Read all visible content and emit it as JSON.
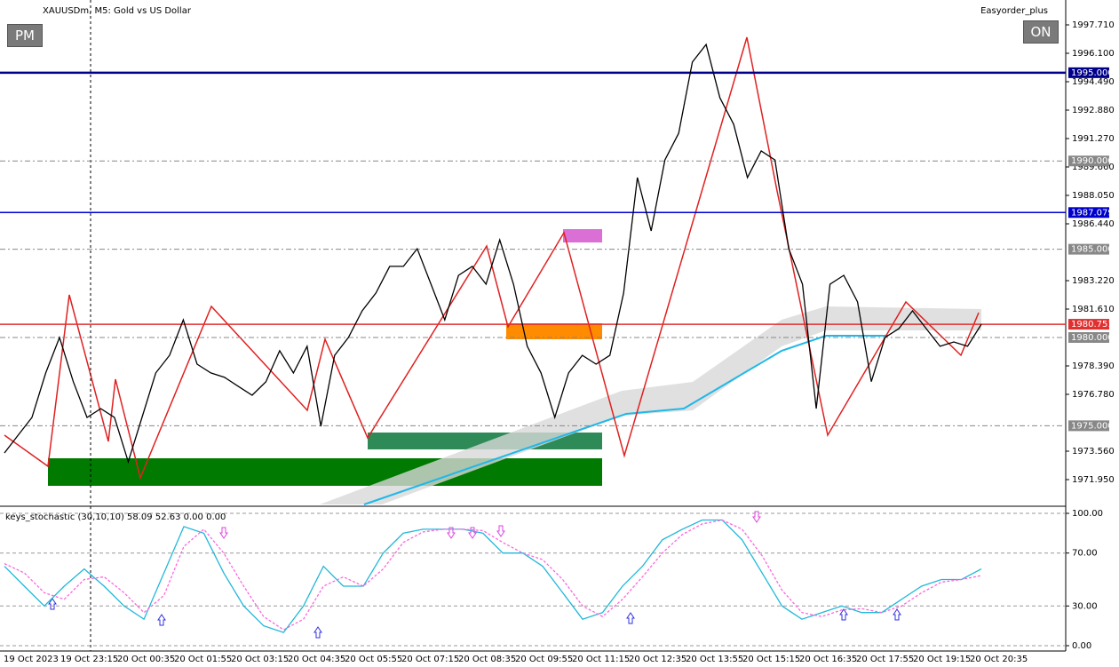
{
  "header": {
    "symbol": "XAUUSDm, M5:  Gold vs US Dollar",
    "expert": "Easyorder_plus",
    "buttons": [
      "PM",
      "ON"
    ]
  },
  "chart_data": [
    {
      "type": "line",
      "color": "#000000",
      "values": [
        1973.46,
        1974.47,
        1975.47,
        1977.99,
        1980.0,
        1977.5,
        1975.47,
        1975.97,
        1975.47,
        1972.96,
        1975.47,
        1977.99,
        1978.99,
        1981.0,
        1978.49,
        1977.99,
        1977.74,
        1977.23,
        1976.73,
        1977.49,
        1979.25,
        1977.99,
        1979.5,
        1974.97,
        1978.99,
        1980.0,
        1981.51,
        1982.52,
        1984.03,
        1984.03,
        1985.03,
        1983.02,
        1981.0,
        1983.52,
        1984.03,
        1983.02,
        1985.53,
        1983.02,
        1979.5,
        1977.99,
        1975.47,
        1977.99,
        1978.99,
        1978.49,
        1978.99,
        1982.52,
        1989.06,
        1986.04,
        1990.06,
        1991.57,
        1995.6,
        1996.6,
        1993.58,
        1992.08,
        1989.06,
        1990.57,
        1990.06,
        1985.03,
        1983.02,
        1975.97,
        1983.02,
        1983.52,
        1982.01,
        1977.5,
        1980.0,
        1980.5,
        1981.51,
        1980.5,
        1979.5,
        1979.75,
        1979.5,
        1980.75
      ],
      "ylim": [
        1970.541,
        1999.119
      ],
      "yticks": [
        {
          "value": 1997.71,
          "label": "1997.710"
        },
        {
          "value": 1996.1,
          "label": "1996.100"
        },
        {
          "value": 1994.49,
          "label": "1994.490"
        },
        {
          "value": 1992.88,
          "label": "1992.880"
        },
        {
          "value": 1991.27,
          "label": "1991.270"
        },
        {
          "value": 1989.66,
          "label": "1989.660"
        },
        {
          "value": 1988.05,
          "label": "1988.050"
        },
        {
          "value": 1986.44,
          "label": "1986.440"
        },
        {
          "value": 1983.22,
          "label": "1983.220"
        },
        {
          "value": 1981.61,
          "label": "1981.610"
        },
        {
          "value": 1978.39,
          "label": "1978.390"
        },
        {
          "value": 1976.78,
          "label": "1976.780"
        },
        {
          "value": 1973.56,
          "label": "1973.560"
        },
        {
          "value": 1971.95,
          "label": "1971.950"
        }
      ],
      "levels": [
        {
          "value": 1995.0,
          "label": "1995.000",
          "color": "#00008b"
        },
        {
          "value": 1990.0,
          "label": "1990.000",
          "color": "#888888"
        },
        {
          "value": 1987.079,
          "label": "1987.079",
          "color": "#0000cd"
        },
        {
          "value": 1985.0,
          "label": "1985.000",
          "color": "#888888"
        },
        {
          "value": 1980.751,
          "label": "1980.751",
          "color": "#e03030"
        },
        {
          "value": 1980.0,
          "label": "1980.000",
          "color": "#888888"
        },
        {
          "value": 1975.0,
          "label": "1975.000",
          "color": "#888888"
        }
      ],
      "time_labels": [
        "19 Oct 2023",
        "19 Oct 23:15",
        "20 Oct 00:35",
        "20 Oct 01:55",
        "20 Oct 03:15",
        "20 Oct 04:35",
        "20 Oct 05:55",
        "20 Oct 07:15",
        "20 Oct 08:35",
        "20 Oct 09:55",
        "20 Oct 11:15",
        "20 Oct 12:35",
        "20 Oct 13:55",
        "20 Oct 15:15",
        "20 Oct 16:35",
        "20 Oct 17:55",
        "20 Oct 19:15",
        "20 Oct 20:35"
      ]
    },
    {
      "type": "line",
      "title": "keys_stochastic (30,10,10) 58.09 52.63 0.00 0.00",
      "ylim": [
        -4.03,
        103.36
      ],
      "yticks": [
        {
          "value": 100,
          "label": "100.00"
        },
        {
          "value": 70,
          "label": "70.00"
        },
        {
          "value": 30,
          "label": "30.00"
        },
        {
          "value": 0,
          "label": "0.00"
        }
      ],
      "series": [
        {
          "color": "#20b8d8",
          "values": [
            60,
            45,
            30,
            45,
            58,
            45,
            30,
            20,
            55,
            90,
            85,
            55,
            30,
            15,
            10,
            30,
            60,
            45,
            45,
            70,
            85,
            88,
            88,
            88,
            85,
            70,
            70,
            60,
            40,
            20,
            25,
            45,
            60,
            80,
            88,
            95,
            95,
            80,
            55,
            30,
            20,
            25,
            30,
            25,
            25,
            35,
            45,
            50,
            50,
            58
          ]
        },
        {
          "color": "#ff66dd",
          "values": [
            62,
            55,
            40,
            35,
            50,
            52,
            40,
            25,
            38,
            75,
            88,
            70,
            45,
            22,
            12,
            20,
            45,
            52,
            45,
            58,
            78,
            86,
            88,
            88,
            87,
            78,
            70,
            65,
            50,
            30,
            22,
            35,
            52,
            70,
            84,
            92,
            95,
            88,
            68,
            42,
            25,
            22,
            27,
            28,
            25,
            30,
            40,
            48,
            50,
            53
          ]
        }
      ]
    }
  ]
}
